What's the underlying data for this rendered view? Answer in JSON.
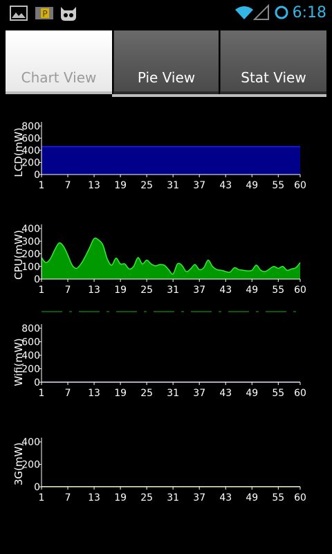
{
  "status_bar": {
    "time": "6:18",
    "left_icons": [
      "image-notification-icon",
      "parking-app-icon",
      "cyanogen-mascot-icon"
    ],
    "right_icons": [
      "wifi-icon",
      "signal-icon",
      "battery-ring-icon"
    ]
  },
  "tabs": [
    {
      "label": "Chart View",
      "active": true
    },
    {
      "label": "Pie View",
      "active": false
    },
    {
      "label": "Stat View",
      "active": false
    }
  ],
  "colors": {
    "lcd_fill": "#00008b",
    "cpu_fill": "#009900",
    "cpu_line": "#33ee33",
    "status_accent": "#33b5e5"
  },
  "chart_data": [
    {
      "type": "area",
      "ylabel": "LCD(mW)",
      "ylim": [
        0,
        800
      ],
      "yticks": [
        "800",
        "600",
        "400",
        "200",
        "0"
      ],
      "xticks": [
        "1",
        "7",
        "13",
        "19",
        "25",
        "31",
        "37",
        "43",
        "49",
        "55",
        "60"
      ],
      "x": [
        1,
        60
      ],
      "values": [
        460,
        460
      ]
    },
    {
      "type": "area",
      "ylabel": "CPU(mW)",
      "ylim": [
        0,
        400
      ],
      "yticks": [
        "400",
        "300",
        "200",
        "100",
        "0"
      ],
      "xticks": [
        "1",
        "7",
        "13",
        "19",
        "25",
        "31",
        "37",
        "43",
        "49",
        "55",
        "60"
      ],
      "x": [
        1,
        2,
        3,
        4,
        5,
        6,
        7,
        8,
        9,
        10,
        11,
        12,
        13,
        14,
        15,
        16,
        17,
        18,
        19,
        20,
        21,
        22,
        23,
        24,
        25,
        26,
        27,
        28,
        29,
        30,
        31,
        32,
        33,
        34,
        35,
        36,
        37,
        38,
        39,
        40,
        41,
        42,
        43,
        44,
        45,
        46,
        47,
        48,
        49,
        50,
        51,
        52,
        53,
        54,
        55,
        56,
        57,
        58,
        59,
        60
      ],
      "values": [
        170,
        130,
        160,
        230,
        285,
        260,
        190,
        110,
        85,
        120,
        180,
        250,
        320,
        310,
        270,
        160,
        110,
        165,
        120,
        120,
        80,
        100,
        170,
        120,
        150,
        120,
        105,
        115,
        110,
        75,
        40,
        120,
        110,
        60,
        80,
        115,
        75,
        90,
        150,
        100,
        75,
        70,
        60,
        55,
        90,
        75,
        70,
        65,
        70,
        110,
        70,
        60,
        80,
        100,
        85,
        100,
        70,
        80,
        90,
        130
      ]
    },
    {
      "type": "line",
      "ylabel": "Wifi(mW)",
      "ylim": [
        0,
        800
      ],
      "yticks": [
        "800",
        "600",
        "400",
        "200",
        "0"
      ],
      "xticks": [
        "1",
        "7",
        "13",
        "19",
        "25",
        "31",
        "37",
        "43",
        "49",
        "55",
        "60"
      ],
      "x": [
        1,
        60
      ],
      "values": [
        0,
        0
      ]
    },
    {
      "type": "line",
      "ylabel": "3G(mW)",
      "ylim": [
        0,
        400
      ],
      "yticks": [
        "400",
        "200",
        "0"
      ],
      "xticks": [
        "1",
        "7",
        "13",
        "19",
        "25",
        "31",
        "37",
        "43",
        "49",
        "55",
        "60"
      ],
      "x": [
        1,
        60
      ],
      "values": [
        0,
        0
      ]
    }
  ]
}
